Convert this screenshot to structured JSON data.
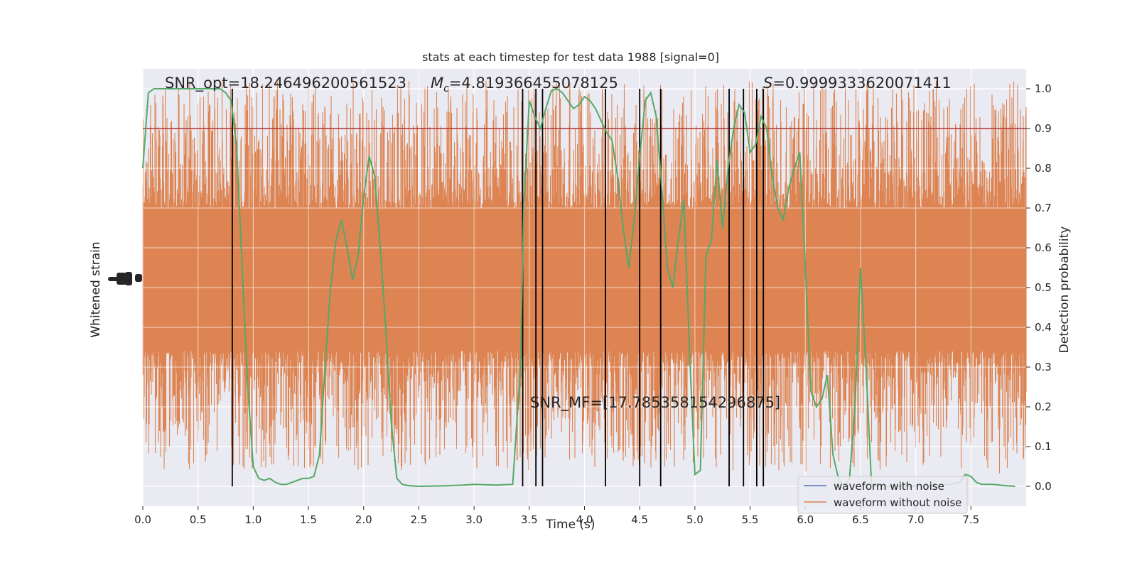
{
  "chart_data": {
    "type": "line",
    "title": "stats at each timestep for test data 1988 [signal=0]",
    "xlabel": "Time (s)",
    "ylabel_left": "Whitened strain",
    "ylabel_right": "Detection probability",
    "xlim": [
      0.0,
      8.0
    ],
    "ylim_right": [
      -0.05,
      1.05
    ],
    "x_ticks": [
      "0.0",
      "0.5",
      "1.0",
      "1.5",
      "2.0",
      "2.5",
      "3.0",
      "3.5",
      "4.0",
      "4.5",
      "5.0",
      "5.5",
      "6.0",
      "6.5",
      "7.0",
      "7.5"
    ],
    "y_ticks_right": [
      "0.0",
      "0.1",
      "0.2",
      "0.3",
      "0.4",
      "0.5",
      "0.6",
      "0.7",
      "0.8",
      "0.9",
      "1.0"
    ],
    "grid": true,
    "legend_position": "lower-right",
    "annotations": {
      "snr_opt": "SNR_opt=18.246496200561523",
      "mc_symbol": "M",
      "mc_sub": "c",
      "mc_value": "=4.819366455078125",
      "s_symbol": "S",
      "s_value": "=0.9999333620071411",
      "snr_mf": "SNR_MF=[17.785358154296875]"
    },
    "threshold": 0.9,
    "series": [
      {
        "name": "waveform with noise",
        "color": "#4c72b0",
        "axis": "left",
        "note": "drawn beneath orange trace, not visible"
      },
      {
        "name": "waveform without noise",
        "color": "#dd8452",
        "axis": "left",
        "band_center": 0.52,
        "band_core_halfwidth": 0.18,
        "spike_max": 1.0,
        "spike_min": 0.0
      },
      {
        "name": "detection probability",
        "color": "#55a868",
        "axis": "right",
        "x": [
          0.0,
          0.05,
          0.1,
          0.2,
          0.3,
          0.4,
          0.5,
          0.6,
          0.7,
          0.75,
          0.8,
          0.85,
          0.9,
          0.95,
          1.0,
          1.05,
          1.1,
          1.15,
          1.2,
          1.25,
          1.3,
          1.35,
          1.4,
          1.45,
          1.5,
          1.55,
          1.6,
          1.65,
          1.7,
          1.75,
          1.8,
          1.85,
          1.9,
          1.95,
          2.0,
          2.05,
          2.1,
          2.15,
          2.2,
          2.25,
          2.3,
          2.35,
          2.4,
          2.5,
          2.7,
          2.9,
          3.0,
          3.1,
          3.2,
          3.35,
          3.42,
          3.45,
          3.5,
          3.55,
          3.6,
          3.65,
          3.7,
          3.75,
          3.8,
          3.85,
          3.9,
          3.95,
          4.0,
          4.05,
          4.1,
          4.15,
          4.2,
          4.25,
          4.3,
          4.35,
          4.4,
          4.45,
          4.5,
          4.55,
          4.6,
          4.65,
          4.7,
          4.75,
          4.8,
          4.85,
          4.9,
          4.95,
          5.0,
          5.05,
          5.1,
          5.15,
          5.2,
          5.25,
          5.3,
          5.35,
          5.4,
          5.45,
          5.5,
          5.55,
          5.6,
          5.65,
          5.7,
          5.75,
          5.8,
          5.85,
          5.9,
          5.95,
          6.0,
          6.05,
          6.1,
          6.15,
          6.2,
          6.25,
          6.3,
          6.35,
          6.4,
          6.45,
          6.5,
          6.55,
          6.6,
          6.7,
          6.9,
          7.1,
          7.3,
          7.4,
          7.45,
          7.5,
          7.55,
          7.6,
          7.7,
          7.8,
          7.9
        ],
        "values": [
          0.8,
          0.99,
          1.0,
          1.0,
          1.0,
          1.0,
          1.0,
          1.0,
          1.0,
          0.99,
          0.97,
          0.85,
          0.55,
          0.25,
          0.05,
          0.02,
          0.015,
          0.02,
          0.01,
          0.005,
          0.005,
          0.01,
          0.015,
          0.02,
          0.02,
          0.025,
          0.08,
          0.3,
          0.5,
          0.62,
          0.67,
          0.6,
          0.52,
          0.58,
          0.73,
          0.83,
          0.78,
          0.6,
          0.4,
          0.16,
          0.02,
          0.005,
          0.002,
          0.0,
          0.001,
          0.003,
          0.005,
          0.004,
          0.003,
          0.005,
          0.3,
          0.7,
          0.97,
          0.93,
          0.9,
          0.95,
          0.995,
          1.0,
          0.99,
          0.97,
          0.95,
          0.96,
          0.98,
          0.97,
          0.95,
          0.92,
          0.89,
          0.87,
          0.78,
          0.65,
          0.55,
          0.67,
          0.83,
          0.97,
          0.99,
          0.93,
          0.75,
          0.55,
          0.5,
          0.62,
          0.72,
          0.35,
          0.03,
          0.04,
          0.58,
          0.62,
          0.82,
          0.65,
          0.8,
          0.9,
          0.96,
          0.94,
          0.84,
          0.86,
          0.93,
          0.9,
          0.78,
          0.7,
          0.67,
          0.75,
          0.8,
          0.84,
          0.55,
          0.24,
          0.2,
          0.22,
          0.28,
          0.08,
          0.02,
          0.0,
          0.02,
          0.2,
          0.55,
          0.3,
          0.0,
          0.0,
          0.0,
          0.001,
          0.005,
          0.01,
          0.03,
          0.025,
          0.01,
          0.005,
          0.005,
          0.002,
          0.0
        ]
      }
    ],
    "vertical_markers": [
      0.81,
      3.44,
      3.56,
      3.62,
      4.19,
      4.5,
      4.69,
      5.31,
      5.44,
      5.56,
      5.62
    ]
  }
}
